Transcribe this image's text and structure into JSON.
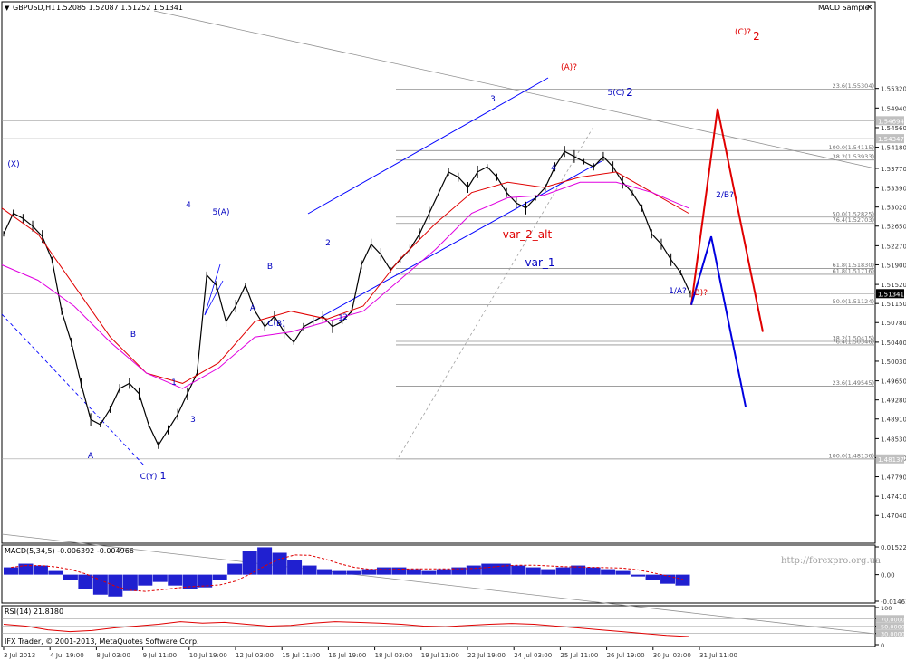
{
  "chart_header": {
    "symbol": "GBPUSD,H1",
    "prices": "1.52085 1.52087 1.51252 1.51341",
    "indicator_title": "MACD Sample",
    "close_icon": "close-icon"
  },
  "chart_data": {
    "type": "line",
    "title": "GBPUSD,H1 1.52085 1.52087 1.51252 1.51341",
    "ylim": [
      1.465,
      1.57
    ],
    "price_axis_labels": [
      "1.55320",
      "1.54940",
      "1.54560",
      "1.54180",
      "1.53770",
      "1.53390",
      "1.53020",
      "1.52650",
      "1.52270",
      "1.51900",
      "1.51520",
      "1.51150",
      "1.50780",
      "1.50400",
      "1.50030",
      "1.49650",
      "1.49280",
      "1.48910",
      "1.48530",
      "1.48160",
      "1.47790",
      "1.47410",
      "1.47040"
    ],
    "price_tags": [
      {
        "label": "1.54694",
        "price": 1.54694,
        "color": "#c0c0c0"
      },
      {
        "label": "1.54347",
        "price": 1.54347,
        "color": "#c0c0c0"
      },
      {
        "label": "1.51341",
        "price": 1.51341,
        "color": "#000000"
      },
      {
        "label": "1.48137",
        "price": 1.48137,
        "color": "#c0c0c0"
      }
    ],
    "time_axis_labels": [
      "3 Jul 2013",
      "4 Jul 19:00",
      "8 Jul 03:00",
      "9 Jul 11:00",
      "10 Jul 19:00",
      "12 Jul 03:00",
      "15 Jul 11:00",
      "16 Jul 19:00",
      "18 Jul 03:00",
      "19 Jul 11:00",
      "22 Jul 19:00",
      "24 Jul 03:00",
      "25 Jul 11:00",
      "26 Jul 19:00",
      "30 Jul 03:00",
      "31 Jul 11:00"
    ],
    "fibonacci_levels": [
      {
        "label": "23.6(1.55304)",
        "price": 1.55304
      },
      {
        "label": "100.0(1.54115)",
        "price": 1.54115
      },
      {
        "label": "38.2(1.53933)",
        "price": 1.53933
      },
      {
        "label": "50.0(1.52825)",
        "price": 1.52825
      },
      {
        "label": "76.4(1.52703)",
        "price": 1.52703
      },
      {
        "label": "61.8(1.51830)",
        "price": 1.5183
      },
      {
        "label": "61.8(1.51716)",
        "price": 1.51716
      },
      {
        "label": "50.0(1.51124)",
        "price": 1.51124
      },
      {
        "label": "38.2(1.50415)",
        "price": 1.50415
      },
      {
        "label": "76.4(1.50346)",
        "price": 1.50346
      },
      {
        "label": "23.6(1.49545)",
        "price": 1.49545
      },
      {
        "label": "100.0(1.48136)",
        "price": 1.48136
      }
    ],
    "price_path": [
      [
        0,
        1.525
      ],
      [
        2,
        1.529
      ],
      [
        4,
        1.528
      ],
      [
        6,
        1.5265
      ],
      [
        8,
        1.5245
      ],
      [
        10,
        1.52
      ],
      [
        12,
        1.51
      ],
      [
        14,
        1.504
      ],
      [
        16,
        1.496
      ],
      [
        18,
        1.489
      ],
      [
        20,
        1.488
      ],
      [
        22,
        1.491
      ],
      [
        24,
        1.495
      ],
      [
        26,
        1.496
      ],
      [
        28,
        1.494
      ],
      [
        30,
        1.488
      ],
      [
        32,
        1.484
      ],
      [
        34,
        1.487
      ],
      [
        36,
        1.49
      ],
      [
        38,
        1.494
      ],
      [
        40,
        1.498
      ],
      [
        42,
        1.517
      ],
      [
        44,
        1.515
      ],
      [
        46,
        1.508
      ],
      [
        48,
        1.511
      ],
      [
        50,
        1.515
      ],
      [
        52,
        1.51
      ],
      [
        54,
        1.507
      ],
      [
        56,
        1.509
      ],
      [
        58,
        1.506
      ],
      [
        60,
        1.504
      ],
      [
        62,
        1.507
      ],
      [
        64,
        1.508
      ],
      [
        66,
        1.509
      ],
      [
        68,
        1.507
      ],
      [
        70,
        1.508
      ],
      [
        72,
        1.51
      ],
      [
        74,
        1.519
      ],
      [
        76,
        1.523
      ],
      [
        78,
        1.521
      ],
      [
        80,
        1.518
      ],
      [
        82,
        1.52
      ],
      [
        84,
        1.522
      ],
      [
        86,
        1.525
      ],
      [
        88,
        1.529
      ],
      [
        90,
        1.533
      ],
      [
        92,
        1.537
      ],
      [
        94,
        1.536
      ],
      [
        96,
        1.534
      ],
      [
        98,
        1.537
      ],
      [
        100,
        1.538
      ],
      [
        102,
        1.536
      ],
      [
        104,
        1.533
      ],
      [
        106,
        1.531
      ],
      [
        108,
        1.53
      ],
      [
        110,
        1.532
      ],
      [
        112,
        1.534
      ],
      [
        114,
        1.538
      ],
      [
        116,
        1.541
      ],
      [
        118,
        1.54
      ],
      [
        120,
        1.539
      ],
      [
        122,
        1.538
      ],
      [
        124,
        1.54
      ],
      [
        126,
        1.538
      ],
      [
        128,
        1.535
      ],
      [
        130,
        1.533
      ],
      [
        132,
        1.53
      ],
      [
        134,
        1.525
      ],
      [
        136,
        1.523
      ],
      [
        138,
        1.52
      ],
      [
        140,
        1.5175
      ],
      [
        142,
        1.5134
      ]
    ],
    "series": [
      {
        "name": "",
        "color": "#e00000",
        "values": [
          1.53,
          1.525,
          1.515,
          1.505,
          1.498,
          1.496,
          1.5,
          1.508,
          1.51,
          1.5085,
          1.511,
          1.52,
          1.527,
          1.533,
          1.535,
          1.534,
          1.536,
          1.537,
          1.533,
          1.529
        ]
      },
      {
        "name": "",
        "color": "#e000e0",
        "values": [
          1.519,
          1.516,
          1.511,
          1.504,
          1.498,
          1.495,
          1.499,
          1.505,
          1.506,
          1.508,
          1.51,
          1.516,
          1.522,
          1.529,
          1.532,
          1.5325,
          1.535,
          1.535,
          1.533,
          1.53
        ]
      }
    ],
    "wave_labels": [
      {
        "text": "(X)",
        "color": "#0000c0"
      },
      {
        "text": "A",
        "color": "#0000c0"
      },
      {
        "text": "B",
        "color": "#0000c0"
      },
      {
        "text": "C(Y)",
        "color": "#0000c0"
      },
      {
        "text": "1",
        "color": "#0000c0"
      },
      {
        "text": "1",
        "color": "#0000c0"
      },
      {
        "text": "2",
        "color": "#0000c0"
      },
      {
        "text": "3",
        "color": "#0000c0"
      },
      {
        "text": "4",
        "color": "#0000c0"
      },
      {
        "text": "5(A)",
        "color": "#0000c0"
      },
      {
        "text": "A",
        "color": "#0000c0"
      },
      {
        "text": "B",
        "color": "#0000c0"
      },
      {
        "text": "C(B)",
        "color": "#0000c0"
      },
      {
        "text": "1",
        "color": "#0000c0"
      },
      {
        "text": "2",
        "color": "#0000c0"
      },
      {
        "text": "3",
        "color": "#0000c0"
      },
      {
        "text": "4",
        "color": "#0000c0"
      },
      {
        "text": "5(C)",
        "color": "#0000c0"
      },
      {
        "text": "2",
        "color": "#0000c0"
      },
      {
        "text": "(A)?",
        "color": "#e00000"
      },
      {
        "text": "(C)?",
        "color": "#e00000"
      },
      {
        "text": "2",
        "color": "#e00000"
      },
      {
        "text": "var_2_alt",
        "color": "#e00000"
      },
      {
        "text": "var_1",
        "color": "#0000c0"
      },
      {
        "text": "1/A?",
        "color": "#0000c0"
      },
      {
        "text": "(B)?",
        "color": "#e00000"
      },
      {
        "text": "2/B?",
        "color": "#0000c0"
      }
    ],
    "macd": {
      "title": "MACD(5,34,5) -0.006392 -0.004966",
      "axis_labels": [
        "0.015227",
        "0.00",
        "-0.01461"
      ],
      "ylim": [
        -0.01461,
        0.015227
      ],
      "values": [
        0.004,
        0.006,
        0.005,
        0.002,
        -0.003,
        -0.008,
        -0.011,
        -0.012,
        -0.009,
        -0.006,
        -0.004,
        -0.006,
        -0.008,
        -0.007,
        -0.003,
        0.006,
        0.013,
        0.015,
        0.012,
        0.008,
        0.005,
        0.003,
        0.002,
        0.002,
        0.003,
        0.004,
        0.004,
        0.003,
        0.002,
        0.003,
        0.004,
        0.005,
        0.006,
        0.006,
        0.005,
        0.004,
        0.003,
        0.004,
        0.005,
        0.004,
        0.003,
        0.002,
        -0.001,
        -0.003,
        -0.005,
        -0.006
      ]
    },
    "rsi": {
      "title": "RSI(14) 21.8180",
      "axis_labels": [
        "100",
        "70.0000",
        "50.0000",
        "30.0000",
        "0"
      ],
      "ylim": [
        0,
        100
      ],
      "values": [
        55,
        50,
        40,
        35,
        38,
        45,
        50,
        55,
        62,
        58,
        60,
        55,
        50,
        52,
        58,
        62,
        60,
        58,
        55,
        50,
        48,
        52,
        55,
        57,
        55,
        50,
        45,
        40,
        35,
        30,
        25,
        22
      ]
    },
    "watermark": "http://forexpro.org.ua",
    "footer": "IFX Trader, © 2001-2013, MetaQuotes Software Corp."
  }
}
